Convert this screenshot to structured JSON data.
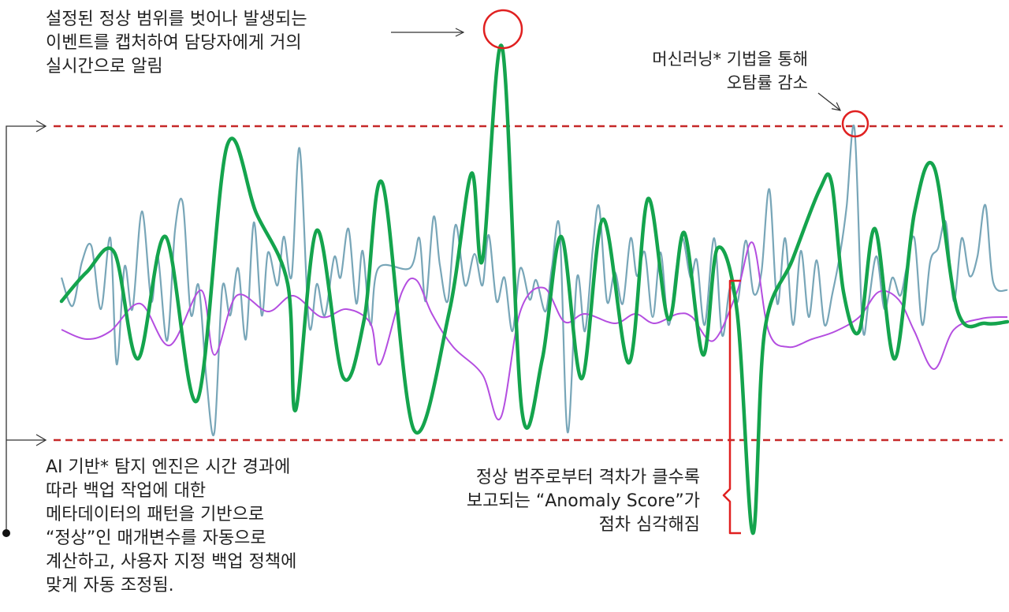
{
  "annotations": {
    "top_left": [
      "설정된 정상 범위를 벗어나 발생되는",
      "이벤트를 캡처하여 담당자에게 거의",
      "실시간으로 알림"
    ],
    "top_right": [
      "머신러닝* 기법을 통해",
      "오탐률 감소"
    ],
    "bottom_left": [
      "AI 기반* 탐지 엔진은 시간 경과에",
      "따라 백업 작업에 대한",
      "메타데이터의 패턴을 기반으로",
      "“정상”인 매개변수를 자동으로",
      "계산하고, 사용자 지정 백업 정책에",
      "맞게 자동 조정됨."
    ],
    "bottom_center": [
      "정상 범주로부터 격차가 클수록",
      "보고되는 “Anomaly Score”가",
      "점차 심각해짐"
    ]
  },
  "colors": {
    "threshold": "#c62828",
    "green_signal": "#14a44d",
    "blue_signal": "#78a6b8",
    "purple_signal": "#b44ee0",
    "highlight_circle": "#e02020",
    "arrow": "#333333"
  }
}
